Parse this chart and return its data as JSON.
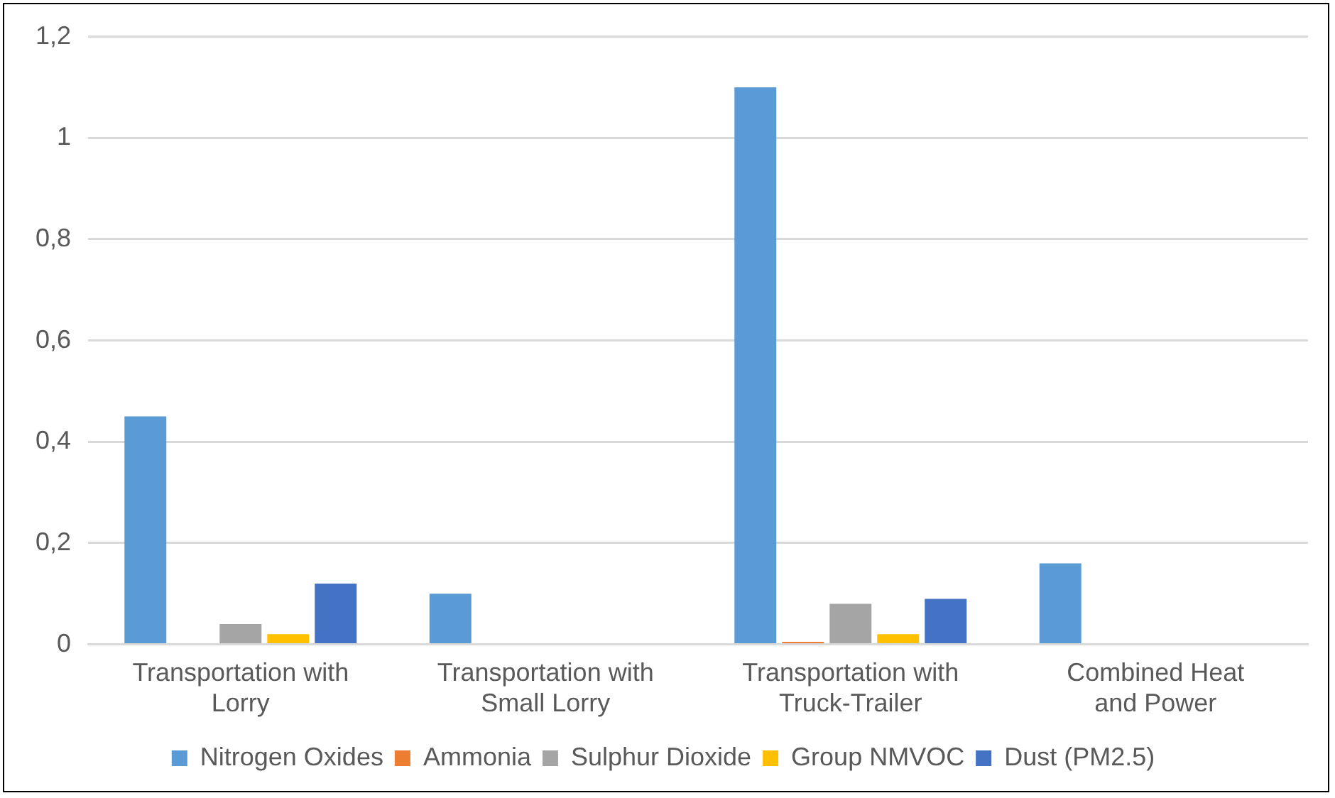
{
  "chart_data": {
    "type": "bar",
    "categories": [
      "Transportation with Lorry",
      "Transportation with Small Lorry",
      "Transportation with Truck-Trailer",
      "Combined Heat and Power"
    ],
    "series": [
      {
        "name": "Nitrogen Oxides",
        "color": "#5b9bd5",
        "values": [
          0.45,
          0.1,
          1.1,
          0.16
        ]
      },
      {
        "name": "Ammonia",
        "color": "#ed7d31",
        "values": [
          0,
          0,
          0.005,
          0
        ]
      },
      {
        "name": "Sulphur Dioxide",
        "color": "#a5a5a5",
        "values": [
          0.04,
          0,
          0.08,
          0
        ]
      },
      {
        "name": "Group NMVOC",
        "color": "#ffc000",
        "values": [
          0.02,
          0,
          0.02,
          0
        ]
      },
      {
        "name": "Dust (PM2.5)",
        "color": "#4472c4",
        "values": [
          0.12,
          0,
          0.09,
          0
        ]
      }
    ],
    "ylim": [
      0,
      1.2
    ],
    "yticks": [
      {
        "value": 0,
        "label": "0"
      },
      {
        "value": 0.2,
        "label": "0,2"
      },
      {
        "value": 0.4,
        "label": "0,4"
      },
      {
        "value": 0.6,
        "label": "0,6"
      },
      {
        "value": 0.8,
        "label": "0,8"
      },
      {
        "value": 1,
        "label": "1"
      },
      {
        "value": 1.2,
        "label": "1,2"
      }
    ],
    "grid": "y",
    "legend": "bottom"
  }
}
